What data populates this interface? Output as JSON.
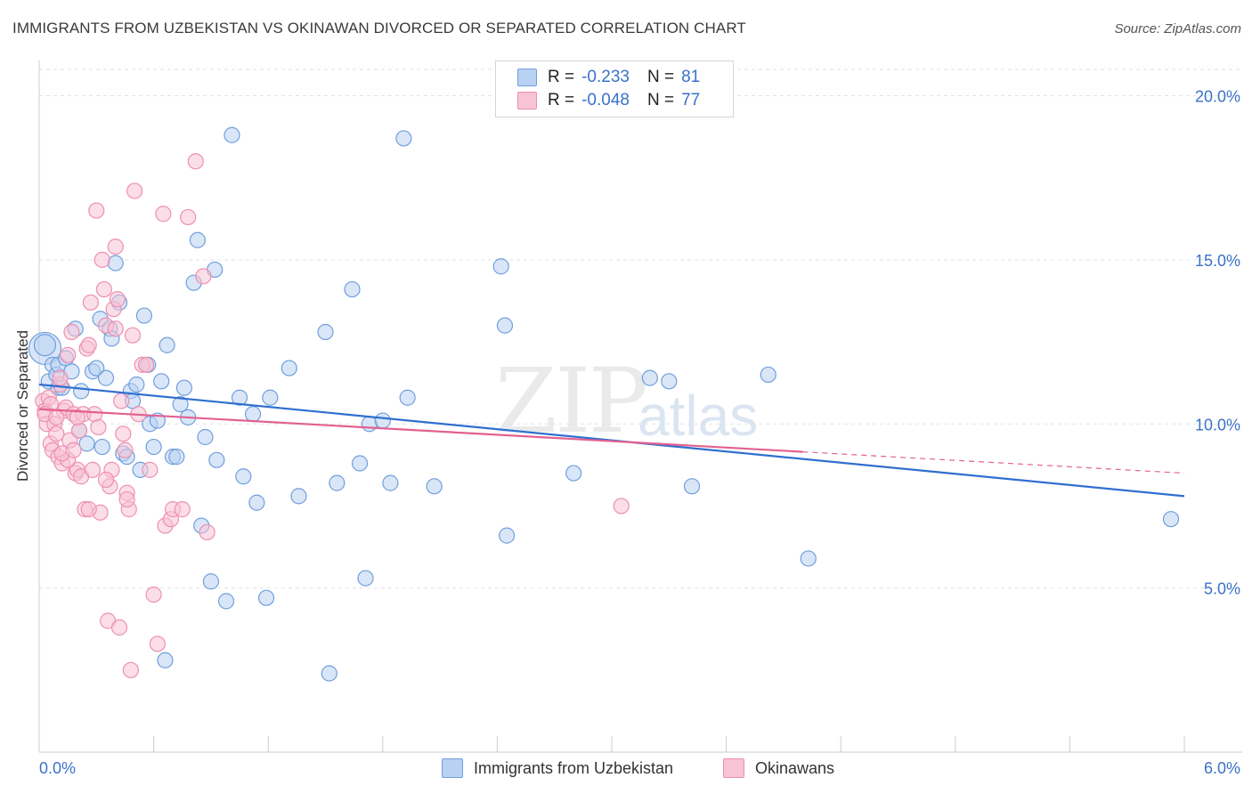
{
  "title": "IMMIGRANTS FROM UZBEKISTAN VS OKINAWAN DIVORCED OR SEPARATED CORRELATION CHART",
  "source": "Source: ZipAtlas.com",
  "watermark": {
    "zip": "ZIP",
    "atlas": "atlas"
  },
  "legend": {
    "rows": [
      {
        "r_label": "R =",
        "r_value": "-0.233",
        "n_label": "N =",
        "n_value": "81"
      },
      {
        "r_label": "R =",
        "r_value": "-0.048",
        "n_label": "N =",
        "n_value": "77"
      }
    ]
  },
  "colors": {
    "blue_fill": "#b9d1f2",
    "blue_stroke": "#6f9fdc",
    "blue_line": "#2f6fd0",
    "pink_fill": "#f8c3d5",
    "pink_stroke": "#ee8fb0",
    "pink_line": "#e2618f",
    "axis_text": "#3a72c6",
    "grid": "#e2e2e2"
  },
  "chart_data": {
    "type": "scatter",
    "title": "IMMIGRANTS FROM UZBEKISTAN VS OKINAWAN DIVORCED OR SEPARATED CORRELATION CHART",
    "xlabel": "",
    "ylabel": "Divorced or Separated",
    "xlim": [
      0,
      6.0
    ],
    "ylim": [
      0,
      20.8
    ],
    "x_tick_labels": [
      "0.0%",
      "6.0%"
    ],
    "y_ticks": [
      5,
      10,
      15,
      20
    ],
    "y_tick_labels": [
      "5.0%",
      "10.0%",
      "15.0%",
      "20.0%"
    ],
    "grid": true,
    "legend_position": "top-center",
    "series": [
      {
        "name": "Immigrants from Uzbekistan",
        "color": "#6f9fdc",
        "trend": {
          "x": [
            0.0,
            6.0
          ],
          "y": [
            11.2,
            7.8
          ],
          "style": "solid"
        },
        "points": [
          [
            0.03,
            12.3
          ],
          [
            0.05,
            11.3
          ],
          [
            0.07,
            11.8
          ],
          [
            0.09,
            11.5
          ],
          [
            0.1,
            11.8
          ],
          [
            0.1,
            11.1
          ],
          [
            0.12,
            11.1
          ],
          [
            0.14,
            12.0
          ],
          [
            0.17,
            11.6
          ],
          [
            0.19,
            12.9
          ],
          [
            0.21,
            9.8
          ],
          [
            0.22,
            11.0
          ],
          [
            0.25,
            9.4
          ],
          [
            0.28,
            11.6
          ],
          [
            0.3,
            11.7
          ],
          [
            0.32,
            13.2
          ],
          [
            0.33,
            9.3
          ],
          [
            0.35,
            11.4
          ],
          [
            0.37,
            12.9
          ],
          [
            0.38,
            12.6
          ],
          [
            0.4,
            14.9
          ],
          [
            0.42,
            13.7
          ],
          [
            0.44,
            9.1
          ],
          [
            0.46,
            9.0
          ],
          [
            0.48,
            11.0
          ],
          [
            0.49,
            10.7
          ],
          [
            0.51,
            11.2
          ],
          [
            0.53,
            8.6
          ],
          [
            0.55,
            13.3
          ],
          [
            0.57,
            11.8
          ],
          [
            0.58,
            10.0
          ],
          [
            0.6,
            9.3
          ],
          [
            0.62,
            10.1
          ],
          [
            0.64,
            11.3
          ],
          [
            0.66,
            2.8
          ],
          [
            0.67,
            12.4
          ],
          [
            0.7,
            9.0
          ],
          [
            0.72,
            9.0
          ],
          [
            0.74,
            10.6
          ],
          [
            0.76,
            11.1
          ],
          [
            0.78,
            10.2
          ],
          [
            0.81,
            14.3
          ],
          [
            0.83,
            15.6
          ],
          [
            0.85,
            6.9
          ],
          [
            0.87,
            9.6
          ],
          [
            0.9,
            5.2
          ],
          [
            0.92,
            14.7
          ],
          [
            0.93,
            8.9
          ],
          [
            0.98,
            4.6
          ],
          [
            1.01,
            18.8
          ],
          [
            1.05,
            10.8
          ],
          [
            1.07,
            8.4
          ],
          [
            1.12,
            10.3
          ],
          [
            1.14,
            7.6
          ],
          [
            1.19,
            4.7
          ],
          [
            1.21,
            10.8
          ],
          [
            1.31,
            11.7
          ],
          [
            1.36,
            7.8
          ],
          [
            1.5,
            12.8
          ],
          [
            1.52,
            2.4
          ],
          [
            1.56,
            8.2
          ],
          [
            1.64,
            14.1
          ],
          [
            1.68,
            8.8
          ],
          [
            1.71,
            5.3
          ],
          [
            1.73,
            10.0
          ],
          [
            1.8,
            10.1
          ],
          [
            1.84,
            8.2
          ],
          [
            1.91,
            18.7
          ],
          [
            1.93,
            10.8
          ],
          [
            2.07,
            8.1
          ],
          [
            2.42,
            14.8
          ],
          [
            2.44,
            13.0
          ],
          [
            2.45,
            6.6
          ],
          [
            2.8,
            8.5
          ],
          [
            3.2,
            11.4
          ],
          [
            3.3,
            11.3
          ],
          [
            3.42,
            8.1
          ],
          [
            3.82,
            11.5
          ],
          [
            4.03,
            5.9
          ],
          [
            5.93,
            7.1
          ],
          [
            0.03,
            12.4
          ]
        ]
      },
      {
        "name": "Okinawans",
        "color": "#ee8fb0",
        "trend": {
          "x": [
            0.0,
            4.0
          ],
          "y": [
            10.45,
            9.15
          ],
          "style": "solid",
          "dashed_to": [
            6.0,
            8.5
          ]
        },
        "points": [
          [
            0.02,
            10.7
          ],
          [
            0.03,
            10.4
          ],
          [
            0.04,
            10.0
          ],
          [
            0.05,
            10.8
          ],
          [
            0.06,
            9.4
          ],
          [
            0.07,
            9.2
          ],
          [
            0.08,
            10.0
          ],
          [
            0.09,
            9.7
          ],
          [
            0.1,
            9.0
          ],
          [
            0.11,
            11.2
          ],
          [
            0.12,
            8.8
          ],
          [
            0.13,
            10.4
          ],
          [
            0.14,
            10.5
          ],
          [
            0.15,
            12.1
          ],
          [
            0.16,
            9.5
          ],
          [
            0.17,
            12.8
          ],
          [
            0.18,
            10.3
          ],
          [
            0.19,
            8.5
          ],
          [
            0.2,
            8.6
          ],
          [
            0.21,
            9.8
          ],
          [
            0.22,
            8.4
          ],
          [
            0.23,
            10.3
          ],
          [
            0.24,
            7.4
          ],
          [
            0.25,
            12.3
          ],
          [
            0.26,
            12.4
          ],
          [
            0.27,
            13.7
          ],
          [
            0.28,
            8.6
          ],
          [
            0.29,
            10.3
          ],
          [
            0.3,
            16.5
          ],
          [
            0.31,
            9.9
          ],
          [
            0.32,
            7.3
          ],
          [
            0.33,
            15.0
          ],
          [
            0.34,
            14.1
          ],
          [
            0.35,
            13.0
          ],
          [
            0.36,
            4.0
          ],
          [
            0.37,
            8.1
          ],
          [
            0.38,
            8.6
          ],
          [
            0.39,
            13.5
          ],
          [
            0.4,
            15.4
          ],
          [
            0.41,
            13.8
          ],
          [
            0.42,
            3.8
          ],
          [
            0.43,
            10.7
          ],
          [
            0.44,
            9.7
          ],
          [
            0.45,
            9.2
          ],
          [
            0.46,
            7.9
          ],
          [
            0.47,
            7.4
          ],
          [
            0.48,
            2.5
          ],
          [
            0.49,
            12.7
          ],
          [
            0.5,
            17.1
          ],
          [
            0.52,
            10.3
          ],
          [
            0.54,
            11.8
          ],
          [
            0.56,
            11.8
          ],
          [
            0.58,
            8.6
          ],
          [
            0.6,
            4.8
          ],
          [
            0.62,
            3.3
          ],
          [
            0.65,
            16.4
          ],
          [
            0.66,
            6.9
          ],
          [
            0.69,
            7.1
          ],
          [
            0.7,
            7.4
          ],
          [
            0.75,
            7.4
          ],
          [
            0.78,
            16.3
          ],
          [
            0.82,
            18.0
          ],
          [
            0.86,
            14.5
          ],
          [
            0.88,
            6.7
          ],
          [
            0.4,
            12.9
          ],
          [
            0.15,
            8.9
          ],
          [
            0.12,
            9.1
          ],
          [
            0.06,
            10.6
          ],
          [
            0.03,
            10.3
          ],
          [
            0.09,
            10.2
          ],
          [
            0.11,
            11.4
          ],
          [
            0.2,
            10.2
          ],
          [
            0.35,
            8.3
          ],
          [
            0.26,
            7.4
          ],
          [
            3.05,
            7.5
          ],
          [
            0.46,
            7.7
          ],
          [
            0.18,
            9.2
          ]
        ]
      }
    ]
  },
  "bottom_legend": [
    {
      "label": "Immigrants from Uzbekistan"
    },
    {
      "label": "Okinawans"
    }
  ]
}
